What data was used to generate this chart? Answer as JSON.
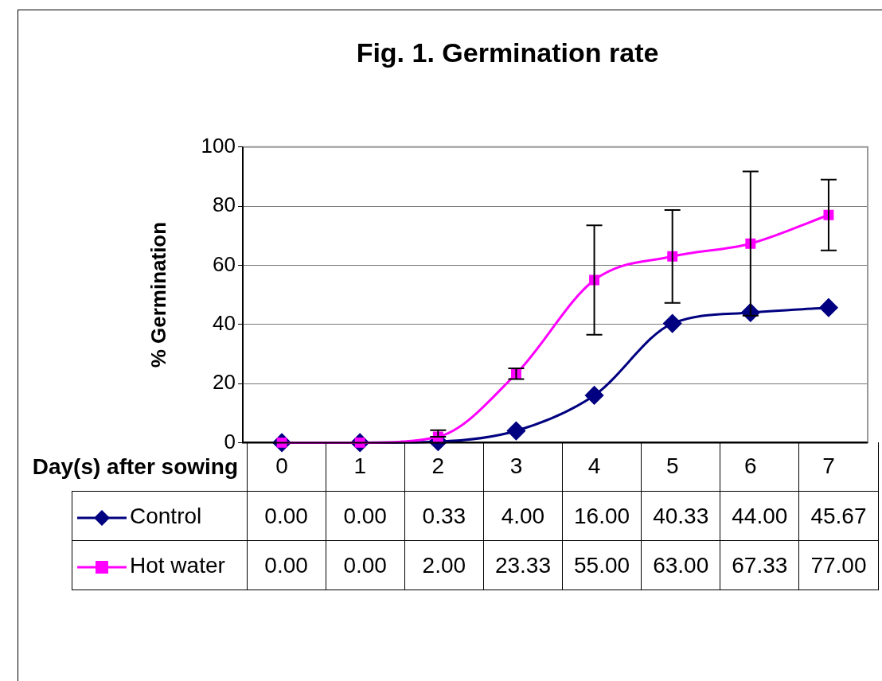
{
  "chart_data": {
    "type": "line",
    "title": "Fig. 1. Germination rate",
    "xlabel": "Day(s) after sowing",
    "ylabel": "% Germination",
    "categories": [
      "0",
      "1",
      "2",
      "3",
      "4",
      "5",
      "6",
      "7"
    ],
    "ylim": [
      0,
      100
    ],
    "yticks": [
      0,
      20,
      40,
      60,
      80,
      100
    ],
    "grid": "y",
    "legend": "bottom",
    "series": [
      {
        "name": "Control",
        "color": "#000080",
        "marker": "diamond",
        "values": [
          0,
          0,
          0.33,
          4,
          16,
          40.33,
          44,
          45.67
        ],
        "value_labels": [
          "0.00",
          "0.00",
          "0.33",
          "4.00",
          "16.00",
          "40.33",
          "44.00",
          "45.67"
        ]
      },
      {
        "name": "Hot water",
        "color": "#ff00ff",
        "marker": "square",
        "values": [
          0,
          0,
          2,
          23.33,
          55,
          63,
          67.33,
          77
        ],
        "value_labels": [
          "0.00",
          "0.00",
          "2.00",
          "23.33",
          "55.00",
          "63.00",
          "67.33",
          "77.00"
        ],
        "errors": [
          null,
          null,
          [
            2,
            4.2
          ],
          1.8,
          18.5,
          15.7,
          24.4,
          12
        ]
      }
    ]
  }
}
